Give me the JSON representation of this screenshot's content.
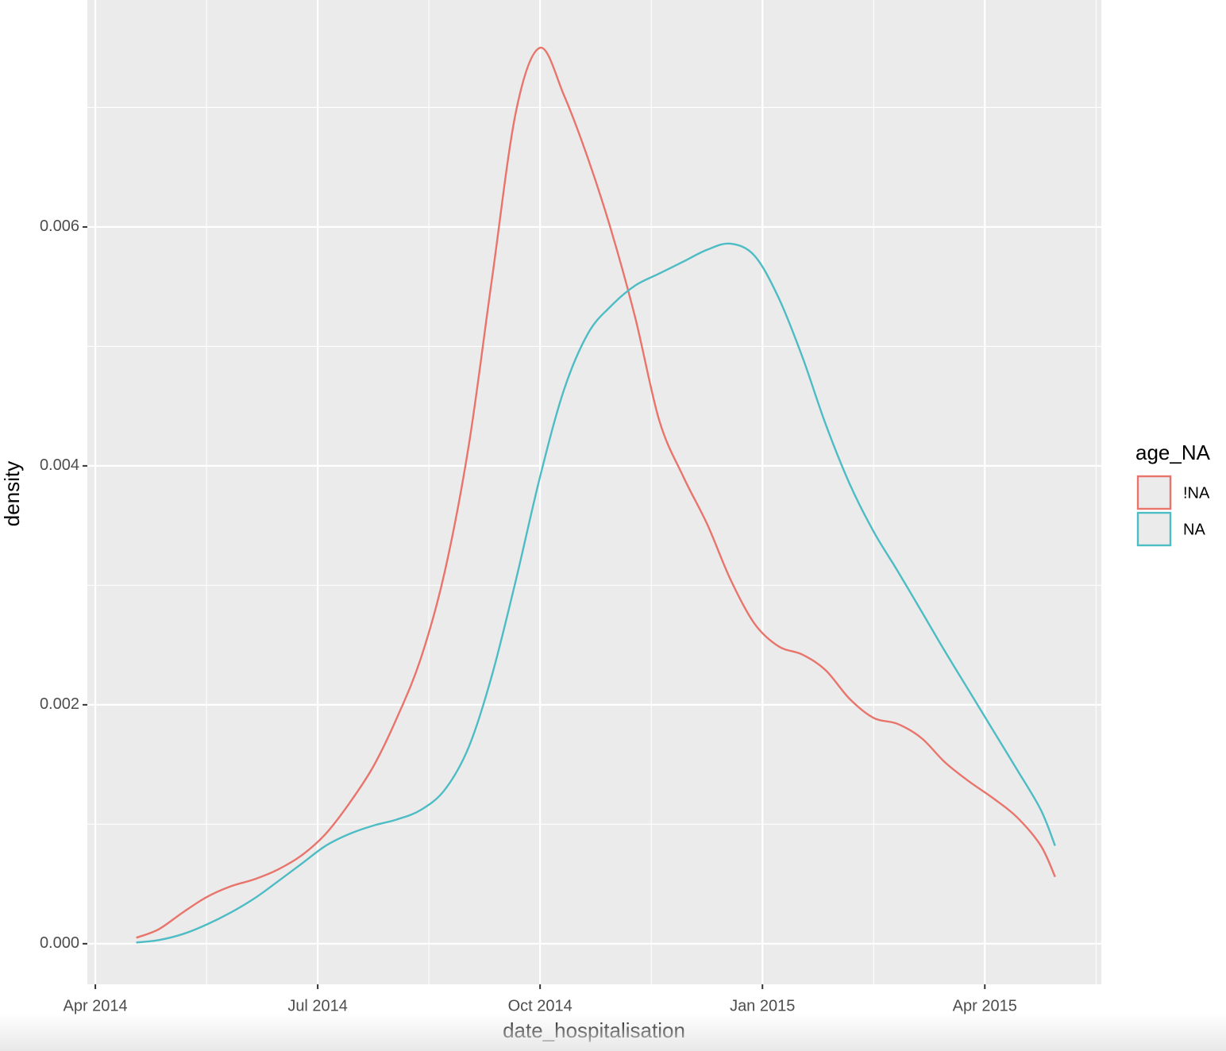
{
  "chart_data": {
    "type": "line",
    "x_label": "date_hospitalisation",
    "y_label": "density",
    "legend_title": "age_NA",
    "legend_position": "right",
    "grid": true,
    "xlim": [
      2014.241,
      2015.381
    ],
    "ylim": [
      -0.00034,
      0.0079
    ],
    "xticks": [
      {
        "value": 2014.25,
        "label": "Apr 2014"
      },
      {
        "value": 2014.5,
        "label": "Jul 2014"
      },
      {
        "value": 2014.75,
        "label": "Oct 2014"
      },
      {
        "value": 2015,
        "label": "Jan 2015"
      },
      {
        "value": 2015.25,
        "label": "Apr 2015"
      }
    ],
    "yticks": [
      {
        "value": 0,
        "label": "0.000"
      },
      {
        "value": 0.002,
        "label": "0.002"
      },
      {
        "value": 0.004,
        "label": "0.004"
      },
      {
        "value": 0.006,
        "label": "0.006"
      }
    ],
    "x": [
      2014.296,
      2014.321,
      2014.348,
      2014.375,
      2014.402,
      2014.429,
      2014.455,
      2014.482,
      2014.509,
      2014.536,
      2014.563,
      2014.589,
      2014.616,
      2014.643,
      2014.67,
      2014.696,
      2014.723,
      2014.75,
      2014.777,
      2014.804,
      2014.83,
      2014.857,
      2014.884,
      2014.911,
      2014.938,
      2014.964,
      2014.991,
      2015.018,
      2015.045,
      2015.071,
      2015.098,
      2015.125,
      2015.152,
      2015.179,
      2015.205,
      2015.232,
      2015.259,
      2015.286,
      2015.313,
      2015.329
    ],
    "series": [
      {
        "name": "!NA",
        "color": "#e8746c",
        "values": [
          5e-05,
          0.00012,
          0.00026,
          0.00039,
          0.00048,
          0.00054,
          0.00062,
          0.00074,
          0.00092,
          0.00118,
          0.00149,
          0.00189,
          0.00239,
          0.00312,
          0.00418,
          0.00557,
          0.00697,
          0.0075,
          0.0071,
          0.00657,
          0.00597,
          0.00524,
          0.00438,
          0.00391,
          0.00351,
          0.00305,
          0.00268,
          0.00249,
          0.00242,
          0.00229,
          0.00205,
          0.00189,
          0.00184,
          0.00172,
          0.00152,
          0.00136,
          0.00122,
          0.00106,
          0.00082,
          0.00056
        ]
      },
      {
        "name": "NA",
        "color": "#4dbcc4",
        "values": [
          1e-05,
          3e-05,
          8e-05,
          0.00016,
          0.00026,
          0.00038,
          0.00052,
          0.00067,
          0.00082,
          0.00092,
          0.00099,
          0.00104,
          0.00112,
          0.00129,
          0.00165,
          0.00225,
          0.00305,
          0.00391,
          0.00464,
          0.00511,
          0.00534,
          0.00551,
          0.00561,
          0.00571,
          0.00581,
          0.00586,
          0.00576,
          0.00541,
          0.00491,
          0.00435,
          0.00385,
          0.00345,
          0.00312,
          0.00278,
          0.00245,
          0.00212,
          0.00179,
          0.00146,
          0.00112,
          0.00082
        ]
      }
    ]
  }
}
